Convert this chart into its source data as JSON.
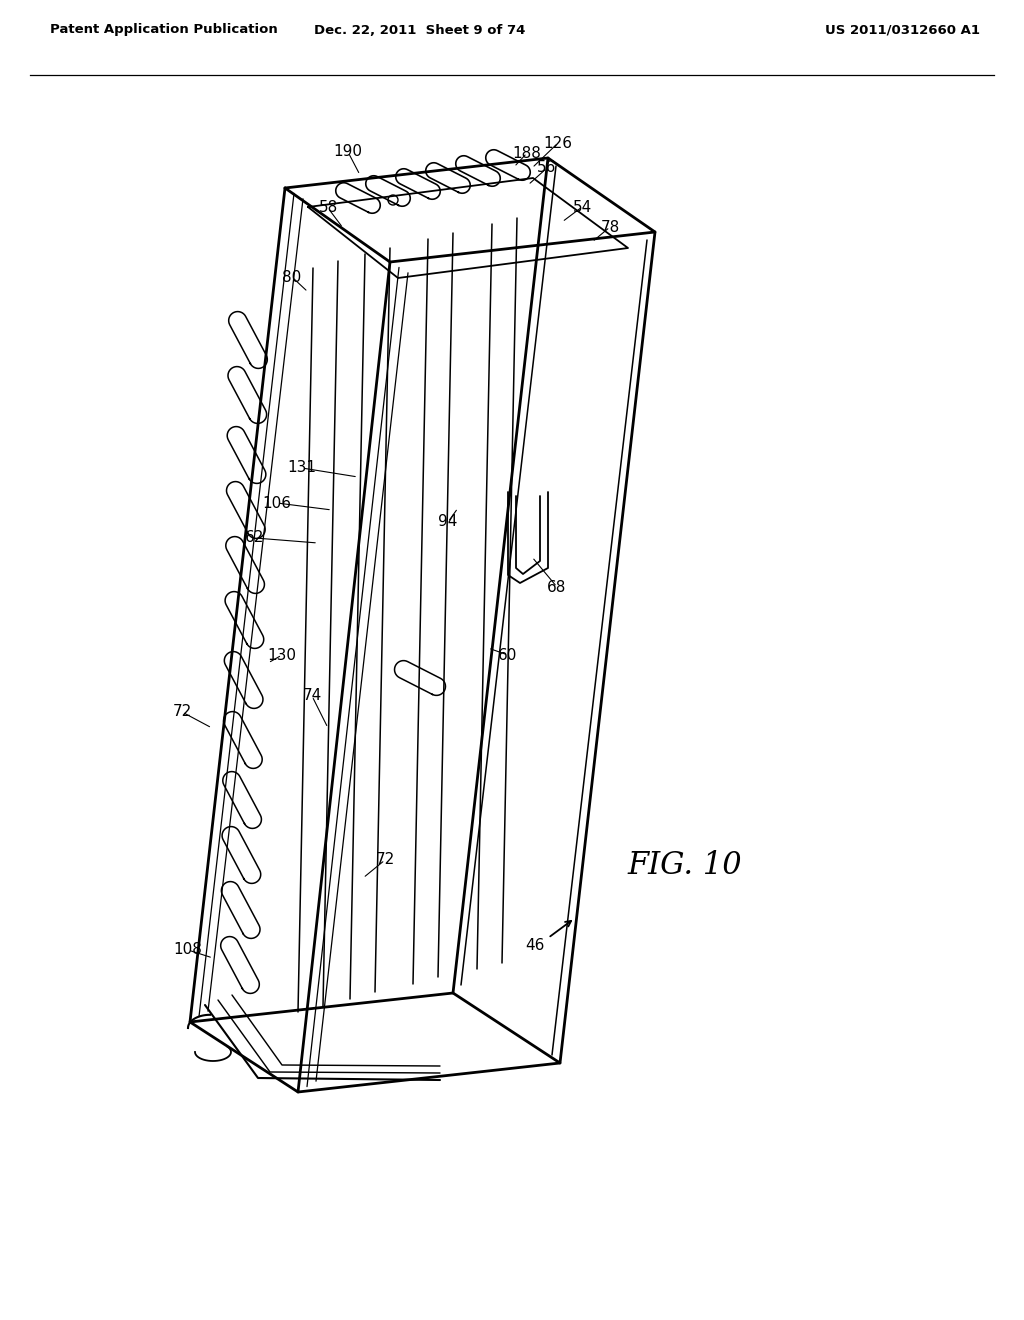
{
  "title_left": "Patent Application Publication",
  "title_center": "Dec. 22, 2011  Sheet 9 of 74",
  "title_right": "US 2011/0312660 A1",
  "fig_label": "FIG. 10",
  "bg_color": "#ffffff",
  "line_color": "#000000",
  "line_width": 1.5
}
